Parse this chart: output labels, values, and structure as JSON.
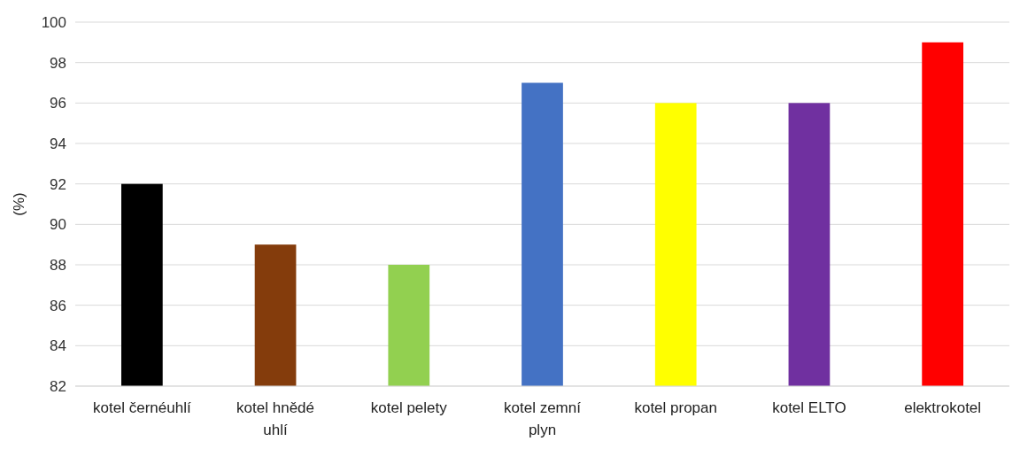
{
  "chart_data": {
    "type": "bar",
    "ylabel": "(%)",
    "categories": [
      "kotel černéuhlí",
      "kotel hnědé uhlí",
      "kotel pelety",
      "kotel zemní plyn",
      "kotel propan",
      "kotel ELTO",
      "elektrokotel"
    ],
    "values": [
      92,
      89,
      88,
      97,
      96,
      96,
      99
    ],
    "colors": [
      "#000000",
      "#843c0c",
      "#92d050",
      "#4472c4",
      "#ffff00",
      "#7030a0",
      "#ff0000"
    ],
    "ylim": [
      82,
      100
    ],
    "yticks": [
      82,
      84,
      86,
      88,
      90,
      92,
      94,
      96,
      98,
      100
    ],
    "grid": "y"
  }
}
